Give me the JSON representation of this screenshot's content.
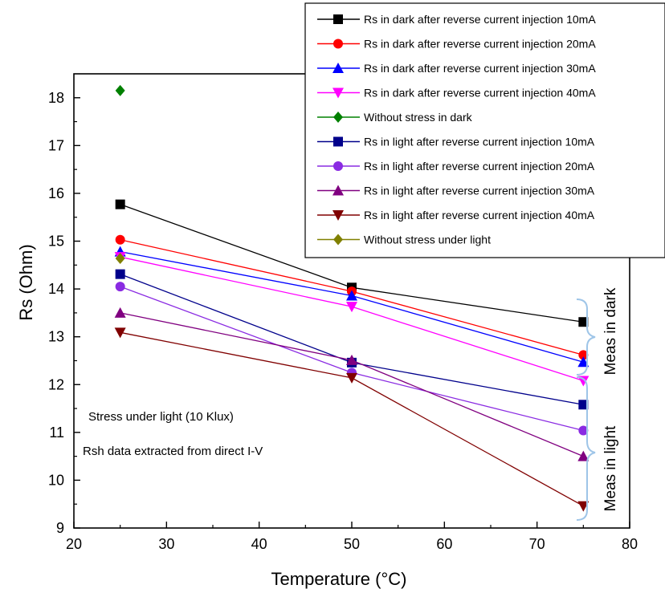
{
  "chart_data": {
    "type": "line",
    "xlabel": "Temperature (°C)",
    "ylabel": "Rs (Ohm)",
    "xlim": [
      20,
      80
    ],
    "ylim": [
      9,
      18.5
    ],
    "xticks": [
      "20",
      "30",
      "40",
      "50",
      "60",
      "70",
      "80"
    ],
    "yticks": [
      "9",
      "10",
      "11",
      "12",
      "13",
      "14",
      "15",
      "16",
      "17",
      "18"
    ],
    "grid": false,
    "legend_position": "top-right",
    "series": [
      {
        "name": "Rs in dark after reverse current injection 10mA",
        "color": "#000000",
        "marker": "square",
        "x": [
          25,
          50,
          75
        ],
        "y": [
          15.77,
          14.03,
          13.31
        ]
      },
      {
        "name": "Rs in dark after reverse current injection 20mA",
        "color": "#ff0000",
        "marker": "circle",
        "x": [
          25,
          50,
          75
        ],
        "y": [
          15.03,
          13.95,
          12.62
        ]
      },
      {
        "name": "Rs in dark after reverse current injection 30mA",
        "color": "#0000ff",
        "marker": "triangle-up",
        "x": [
          25,
          50,
          75
        ],
        "y": [
          14.78,
          13.86,
          12.47
        ]
      },
      {
        "name": "Rs in dark after reverse current injection 40mA",
        "color": "#ff00ff",
        "marker": "triangle-down",
        "x": [
          25,
          50,
          75
        ],
        "y": [
          14.67,
          13.63,
          12.08
        ]
      },
      {
        "name": "Without stress in dark",
        "color": "#008000",
        "marker": "diamond",
        "x": [
          25
        ],
        "y": [
          18.15
        ]
      },
      {
        "name": "Rs in light after reverse current injection 10mA",
        "color": "#00008b",
        "marker": "square",
        "x": [
          25,
          50,
          75
        ],
        "y": [
          14.31,
          12.46,
          11.58
        ]
      },
      {
        "name": "Rs in light after reverse current injection 20mA",
        "color": "#8a2be2",
        "marker": "circle",
        "x": [
          25,
          50,
          75
        ],
        "y": [
          14.05,
          12.25,
          11.04
        ]
      },
      {
        "name": "Rs in light after reverse current injection 30mA",
        "color": "#800080",
        "marker": "triangle-up",
        "x": [
          25,
          50,
          75
        ],
        "y": [
          13.5,
          12.51,
          10.5
        ]
      },
      {
        "name": "Rs in light after reverse current injection 40mA",
        "color": "#800000",
        "marker": "triangle-down",
        "x": [
          25,
          50,
          75
        ],
        "y": [
          13.09,
          12.14,
          9.46
        ]
      },
      {
        "name": "Without stress under light",
        "color": "#808000",
        "marker": "diamond",
        "x": [
          25
        ],
        "y": [
          14.64
        ]
      }
    ],
    "annotations": [
      {
        "text": "Stress under light (10 Klux)"
      },
      {
        "text": "Rsh data extracted from direct I-V"
      }
    ],
    "bracket_labels": [
      "Meas in dark",
      "Meas in light"
    ],
    "bracket_color": "#9ec5e8"
  }
}
